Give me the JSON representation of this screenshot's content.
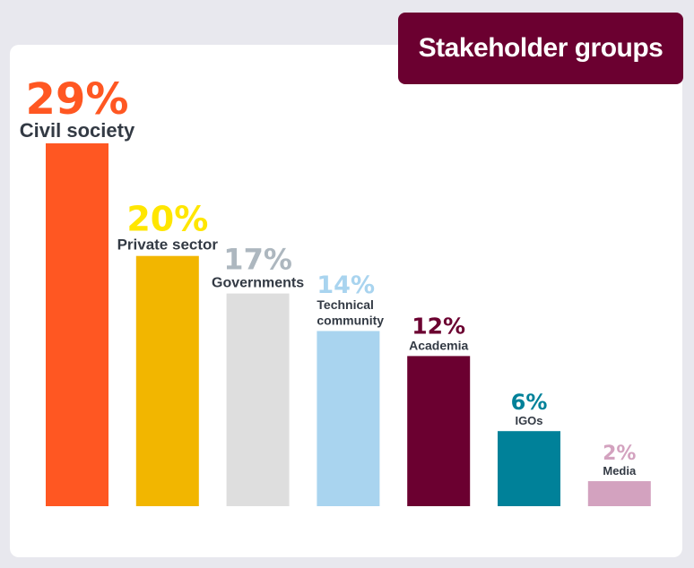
{
  "chart_data": {
    "type": "bar",
    "title": "Stakeholder groups",
    "categories": [
      "Civil society",
      "Private sector",
      "Governments",
      "Technical community",
      "Academia",
      "IGOs",
      "Media"
    ],
    "values": [
      29,
      20,
      17,
      14,
      12,
      6,
      2
    ],
    "value_labels": [
      "29%",
      "20%",
      "17%",
      "14%",
      "12%",
      "6%",
      "2%"
    ],
    "unit": "%",
    "colors": [
      "#ff5722",
      "#f2b600",
      "#dedede",
      "#a9d4ef",
      "#6b0030",
      "#008199",
      "#d3a2bf"
    ],
    "label_colors": [
      "#ff5722",
      "#ffe600",
      "#adb7bf",
      "#a9d4ef",
      "#6b0030",
      "#008199",
      "#d3a2bf"
    ],
    "ylim": [
      0,
      29
    ],
    "grid": false,
    "legend": "none"
  }
}
